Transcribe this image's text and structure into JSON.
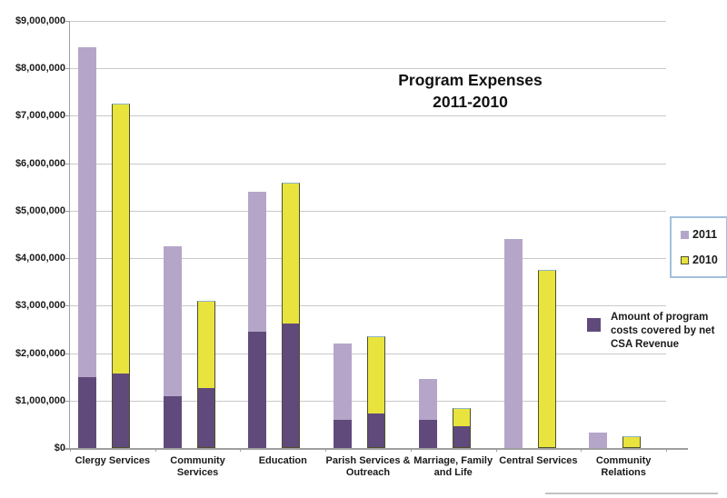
{
  "chart_data": {
    "type": "bar",
    "subtype": "grouped-stacked-columns",
    "title": "Program Expenses 2011-2010",
    "title_lines": [
      "Program Expenses",
      "2011-2010"
    ],
    "categories": [
      "Clergy Services",
      "Community Services",
      "Education",
      "Parish Services & Outreach",
      "Marriage, Family and Life",
      "Central Services",
      "Community Relations"
    ],
    "category_label_lines": [
      [
        "Clergy Services"
      ],
      [
        "Community Services"
      ],
      [
        "Education"
      ],
      [
        "Parish Services &",
        "Outreach"
      ],
      [
        "Marriage, Family",
        "and Life"
      ],
      [
        "Central Services"
      ],
      [
        "Community",
        "Relations"
      ]
    ],
    "series": [
      {
        "name": "2011",
        "role": "total-2011",
        "values": [
          8450000,
          4250000,
          5400000,
          2200000,
          1450000,
          4400000,
          320000
        ]
      },
      {
        "name": "2010",
        "role": "total-2010",
        "values": [
          7250000,
          3100000,
          5600000,
          2350000,
          850000,
          3750000,
          250000
        ]
      },
      {
        "name": "Amount of program costs covered by net CSA Revenue",
        "role": "covered-2011",
        "values": [
          1500000,
          1100000,
          2450000,
          600000,
          600000,
          0,
          0
        ]
      },
      {
        "name": "Amount of program costs covered by net CSA Revenue",
        "role": "covered-2010",
        "values": [
          1550000,
          1250000,
          2600000,
          700000,
          450000,
          0,
          0
        ]
      }
    ],
    "legend_note_lines": [
      "Amount of program",
      "costs covered by net",
      "CSA Revenue"
    ],
    "ylim": [
      0,
      9000000
    ],
    "ytick_interval": 1000000,
    "ytick_labels": [
      "$0",
      "$1,000,000",
      "$2,000,000",
      "$3,000,000",
      "$4,000,000",
      "$5,000,000",
      "$6,000,000",
      "$7,000,000",
      "$8,000,000",
      "$9,000,000"
    ],
    "grid": true,
    "legend_position": "right",
    "colors": {
      "s2011": "#b5a6c9",
      "s2010": "#e9e33e",
      "covered": "#604a7b",
      "bar_border": "#4e4f2e",
      "bar_border_top": "#8fb3c7",
      "legend_border": "#a3c0dc",
      "gridline": "#c9c9c9",
      "axis": "#9f9f9f"
    }
  }
}
